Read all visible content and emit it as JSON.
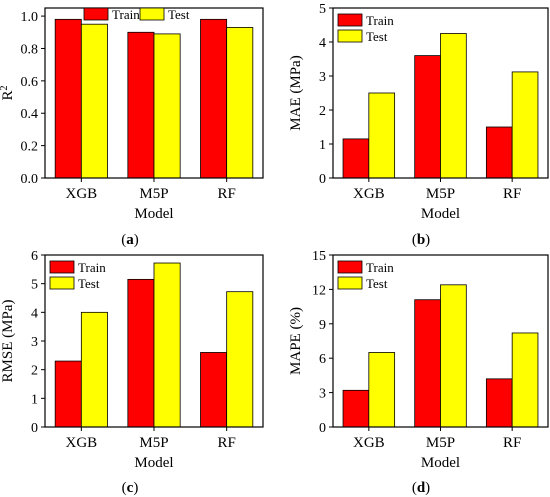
{
  "legend_labels": [
    "Train",
    "Test"
  ],
  "colors": {
    "train": "#ff0000",
    "test": "#ffff00",
    "frame": "#000000"
  },
  "chart_data": [
    {
      "panel": "(a)",
      "type": "bar",
      "categories": [
        "XGB",
        "M5P",
        "RF"
      ],
      "series": [
        {
          "name": "Train",
          "values": [
            0.98,
            0.9,
            0.98
          ]
        },
        {
          "name": "Test",
          "values": [
            0.95,
            0.89,
            0.93
          ]
        }
      ],
      "xlabel": "Model",
      "ylabel_main": "R",
      "ylabel_sup": "2",
      "ylim": [
        0,
        1.05
      ],
      "yticks": [
        "0.0",
        "0.2",
        "0.4",
        "0.6",
        "0.8",
        "1.0"
      ],
      "legend": "top",
      "grid": false
    },
    {
      "panel": "(b)",
      "type": "bar",
      "categories": [
        "XGB",
        "M5P",
        "RF"
      ],
      "series": [
        {
          "name": "Train",
          "values": [
            1.15,
            3.6,
            1.5
          ]
        },
        {
          "name": "Test",
          "values": [
            2.5,
            4.25,
            3.12
          ]
        }
      ],
      "xlabel": "Model",
      "ylabel_main": "MAE (MPa)",
      "ylim": [
        0,
        5
      ],
      "yticks": [
        "0",
        "1",
        "2",
        "3",
        "4",
        "5"
      ],
      "legend": "top-left",
      "grid": false
    },
    {
      "panel": "(c)",
      "type": "bar",
      "categories": [
        "XGB",
        "M5P",
        "RF"
      ],
      "series": [
        {
          "name": "Train",
          "values": [
            2.3,
            5.15,
            2.6
          ]
        },
        {
          "name": "Test",
          "values": [
            4.0,
            5.72,
            4.72
          ]
        }
      ],
      "xlabel": "Model",
      "ylabel_main": "RMSE (MPa)",
      "ylim": [
        0,
        6
      ],
      "yticks": [
        "0",
        "1",
        "2",
        "3",
        "4",
        "5",
        "6"
      ],
      "legend": "top-left",
      "grid": false
    },
    {
      "panel": "(d)",
      "type": "bar",
      "categories": [
        "XGB",
        "M5P",
        "RF"
      ],
      "series": [
        {
          "name": "Train",
          "values": [
            3.2,
            11.1,
            4.2
          ]
        },
        {
          "name": "Test",
          "values": [
            6.5,
            12.4,
            8.2
          ]
        }
      ],
      "xlabel": "Model",
      "ylabel_main": "MAPE (%)",
      "ylim": [
        0,
        15
      ],
      "yticks": [
        "0",
        "3",
        "6",
        "9",
        "12",
        "15"
      ],
      "legend": "top-left",
      "grid": false
    }
  ]
}
